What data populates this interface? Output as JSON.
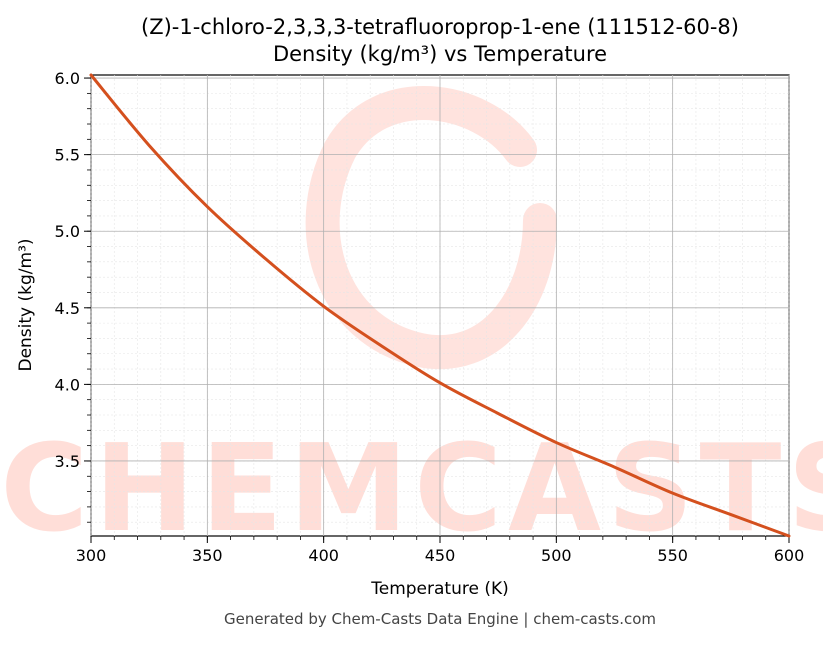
{
  "chart_data": {
    "type": "line",
    "title": "(Z)-1-chloro-2,3,3,3-tetrafluoroprop-1-ene (111512-60-8)",
    "subtitle": "Density (kg/m³) vs Temperature",
    "xlabel": "Temperature (K)",
    "ylabel": "Density (kg/m³)",
    "xlim": [
      300,
      600
    ],
    "ylim": [
      3.01,
      6.02
    ],
    "x_ticks": [
      300,
      350,
      400,
      450,
      500,
      550,
      600
    ],
    "x_tick_labels": [
      "300",
      "350",
      "400",
      "450",
      "500",
      "550",
      "600"
    ],
    "y_ticks": [
      3.5,
      4.0,
      4.5,
      5.0,
      5.5,
      6.0
    ],
    "y_tick_labels": [
      "3.5",
      "4.0",
      "4.5",
      "5.0",
      "5.5",
      "6.0"
    ],
    "grid": true,
    "line_color": "#d4501e",
    "series": [
      {
        "x": [
          300,
          325,
          350,
          375,
          400,
          425,
          450,
          475,
          500,
          525,
          550,
          575,
          600
        ],
        "values": [
          6.02,
          5.56,
          5.16,
          4.82,
          4.51,
          4.25,
          4.01,
          3.81,
          3.62,
          3.46,
          3.29,
          3.15,
          3.01
        ]
      }
    ]
  },
  "watermark": {
    "text": "CHEMCASTS",
    "color": "#ffd9d2"
  },
  "footer": {
    "text": "Generated by Chem-Casts Data Engine | chem-casts.com"
  }
}
